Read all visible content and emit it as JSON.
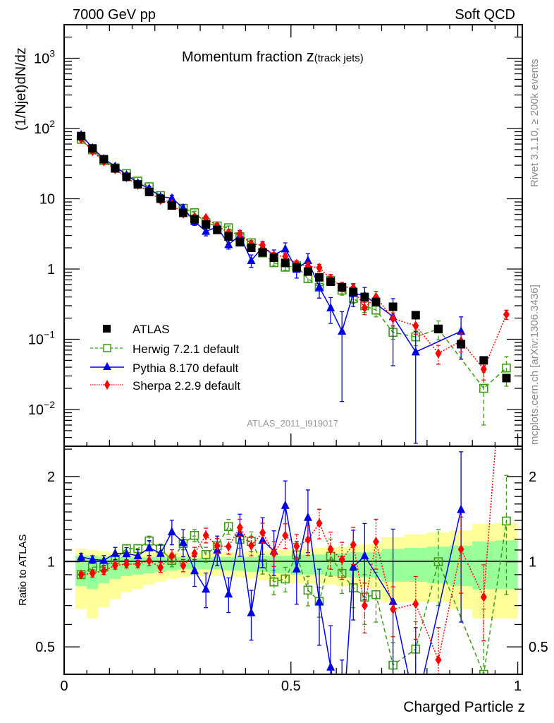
{
  "header": {
    "left": "7000 GeV pp",
    "right": "Soft QCD"
  },
  "side_labels": {
    "top": "Rivet 3.1.10, ≥ 200k events",
    "bottom": "mcplots.cern.ch [arXiv:1306.3436]"
  },
  "chart_data": {
    "type": "scatter",
    "title": "Momentum fraction ",
    "title_var": "z",
    "title_suffix": "(track jets)",
    "xlabel": "Charged Particle z",
    "ylabel": "(1/Njet)dN/dz",
    "ratio_ylabel": "Ratio to ATLAS",
    "analysis_id": "ATLAS_2011_I919017",
    "xlim": [
      0,
      1.01
    ],
    "ylim": [
      0.003,
      3000
    ],
    "yscale": "log",
    "ratio_ylim": [
      0.4,
      2.56
    ],
    "ratio_yscale": "log",
    "x_tick_labels": [
      "0",
      "0.5",
      "1"
    ],
    "x_ticks": [
      0,
      0.5,
      1
    ],
    "y_ticks": [
      1000,
      100,
      10,
      1,
      0.1,
      0.01
    ],
    "y_tick_labels": [
      [
        "10",
        "3"
      ],
      [
        "10",
        "2"
      ],
      [
        "10",
        ""
      ],
      [
        "1",
        ""
      ],
      [
        "10",
        "−1"
      ],
      [
        "10",
        "−2"
      ]
    ],
    "ratio_ticks": [
      2,
      1,
      0.5
    ],
    "ratio_tick_labels": [
      "2",
      "1",
      "0.5"
    ],
    "legend_position": "middle-left",
    "x": [
      0.0375,
      0.0625,
      0.0875,
      0.1125,
      0.1375,
      0.1625,
      0.1875,
      0.2125,
      0.2375,
      0.2625,
      0.2875,
      0.3125,
      0.3375,
      0.3625,
      0.3875,
      0.4125,
      0.4375,
      0.4625,
      0.4875,
      0.5125,
      0.5375,
      0.5625,
      0.5875,
      0.6125,
      0.6375,
      0.6625,
      0.6875,
      0.725,
      0.775,
      0.825,
      0.875,
      0.925,
      0.975
    ],
    "bin_halfwidth": [
      0.0125,
      0.0125,
      0.0125,
      0.0125,
      0.0125,
      0.0125,
      0.0125,
      0.0125,
      0.0125,
      0.0125,
      0.0125,
      0.0125,
      0.0125,
      0.0125,
      0.0125,
      0.0125,
      0.0125,
      0.0125,
      0.0125,
      0.0125,
      0.0125,
      0.0125,
      0.0125,
      0.0125,
      0.0125,
      0.0125,
      0.0125,
      0.025,
      0.025,
      0.025,
      0.025,
      0.025,
      0.025
    ],
    "data": {
      "name": "ATLAS",
      "color": "#000000",
      "values": [
        78,
        52,
        36.5,
        27,
        20.5,
        16,
        12.5,
        10,
        8,
        6.3,
        5.1,
        4.3,
        3.6,
        2.9,
        2.4,
        2.0,
        1.72,
        1.45,
        1.22,
        1.05,
        0.92,
        0.76,
        0.66,
        0.55,
        0.47,
        0.4,
        0.34,
        0.29,
        0.22,
        0.14,
        0.085,
        0.05,
        0.028
      ],
      "band_yellow_lo": [
        0.68,
        0.63,
        0.69,
        0.74,
        0.78,
        0.8,
        0.83,
        0.85,
        0.87,
        0.88,
        0.89,
        0.89,
        0.89,
        0.89,
        0.88,
        0.87,
        0.86,
        0.85,
        0.85,
        0.84,
        0.84,
        0.83,
        0.83,
        0.82,
        0.82,
        0.81,
        0.8,
        0.72,
        0.72,
        0.72,
        0.68,
        0.63,
        0.63
      ],
      "band_green_lo": [
        0.82,
        0.8,
        0.84,
        0.87,
        0.89,
        0.9,
        0.91,
        0.92,
        0.93,
        0.94,
        0.94,
        0.94,
        0.94,
        0.93,
        0.93,
        0.92,
        0.92,
        0.91,
        0.91,
        0.9,
        0.9,
        0.9,
        0.89,
        0.89,
        0.88,
        0.88,
        0.88,
        0.85,
        0.85,
        0.84,
        0.82,
        0.8,
        0.8
      ],
      "band_green_hi": [
        1.05,
        1.05,
        1.04,
        1.04,
        1.04,
        1.04,
        1.04,
        1.04,
        1.04,
        1.04,
        1.03,
        1.03,
        1.04,
        1.04,
        1.04,
        1.04,
        1.05,
        1.05,
        1.05,
        1.06,
        1.06,
        1.06,
        1.07,
        1.07,
        1.08,
        1.08,
        1.08,
        1.11,
        1.12,
        1.13,
        1.14,
        1.18,
        1.19
      ],
      "band_yellow_hi": [
        1.11,
        1.1,
        1.09,
        1.08,
        1.08,
        1.08,
        1.08,
        1.08,
        1.08,
        1.07,
        1.07,
        1.07,
        1.07,
        1.08,
        1.08,
        1.09,
        1.09,
        1.1,
        1.1,
        1.11,
        1.11,
        1.12,
        1.13,
        1.13,
        1.14,
        1.15,
        1.16,
        1.22,
        1.25,
        1.27,
        1.29,
        1.36,
        1.37
      ],
      "band_colors": {
        "yellow": "#ffff99",
        "green": "#99ff99"
      }
    },
    "series": [
      {
        "name": "Herwig 7.2.1 default",
        "color": "#3c9a14",
        "line": "dashed",
        "marker": "open-square",
        "values": [
          70.2,
          49.7,
          35.0,
          27.5,
          22.8,
          17.8,
          14.8,
          11.1,
          8.08,
          7.31,
          6.32,
          4.56,
          4.1,
          3.86,
          2.88,
          2.36,
          1.69,
          1.23,
          1.06,
          1.11,
          0.73,
          0.55,
          0.69,
          0.5,
          0.38,
          0.3,
          0.26,
          0.125,
          0.108,
          0.14,
          null,
          0.02,
          0.039
        ],
        "rel_err": [
          0.02,
          0.03,
          0.03,
          0.03,
          0.03,
          0.03,
          0.04,
          0.04,
          0.05,
          0.05,
          0.05,
          0.06,
          0.06,
          0.06,
          0.07,
          0.08,
          0.08,
          0.1,
          0.1,
          0.1,
          0.12,
          0.12,
          0.15,
          0.15,
          0.15,
          0.2,
          0.2,
          0.2,
          0.25,
          0.3,
          0.3,
          0.7,
          0.45
        ]
      },
      {
        "name": "Pythia 8.170 default",
        "color": "#0000e6",
        "line": "solid",
        "marker": "triangle",
        "values": [
          81.1,
          53.0,
          36.9,
          28.9,
          21.9,
          16.8,
          14.0,
          10.7,
          10.2,
          7.37,
          4.74,
          3.44,
          3.96,
          2.23,
          3.02,
          1.32,
          2.05,
          1.58,
          1.93,
          0.99,
          1.32,
          0.55,
          0.28,
          0.13,
          0.45,
          0.42,
          null,
          0.21,
          0.066,
          null,
          0.13,
          null,
          null
        ],
        "rel_err": [
          0.03,
          0.03,
          0.04,
          0.05,
          0.05,
          0.05,
          0.06,
          0.07,
          0.1,
          0.11,
          0.12,
          0.14,
          0.12,
          0.14,
          0.17,
          0.2,
          0.2,
          0.18,
          0.22,
          0.25,
          0.25,
          0.3,
          0.4,
          0.9,
          0.35,
          0.3,
          0,
          0.8,
          0.95,
          0,
          0.6,
          0,
          0
        ]
      },
      {
        "name": "Sherpa 2.2.9 default",
        "color": "#ff0000",
        "line": "dotted",
        "marker": "diamond",
        "values": [
          70.2,
          47.3,
          33.9,
          26.2,
          20.1,
          15.7,
          12.6,
          9.55,
          8.4,
          6.11,
          5.46,
          5.33,
          4.1,
          3.28,
          3.17,
          2.28,
          2.18,
          1.55,
          1.51,
          1.19,
          1.1,
          1.04,
          0.73,
          0.56,
          0.54,
          0.28,
          0.4,
          0.197,
          0.156,
          0.063,
          0.094,
          0.0375,
          0.225
        ],
        "rel_err": [
          0.02,
          0.03,
          0.03,
          0.03,
          0.03,
          0.03,
          0.04,
          0.04,
          0.05,
          0.05,
          0.05,
          0.06,
          0.06,
          0.06,
          0.07,
          0.08,
          0.08,
          0.1,
          0.1,
          0.1,
          0.12,
          0.12,
          0.15,
          0.15,
          0.15,
          0.2,
          0.2,
          0.2,
          0.25,
          0.3,
          0.3,
          0.3,
          0.15
        ]
      }
    ]
  }
}
